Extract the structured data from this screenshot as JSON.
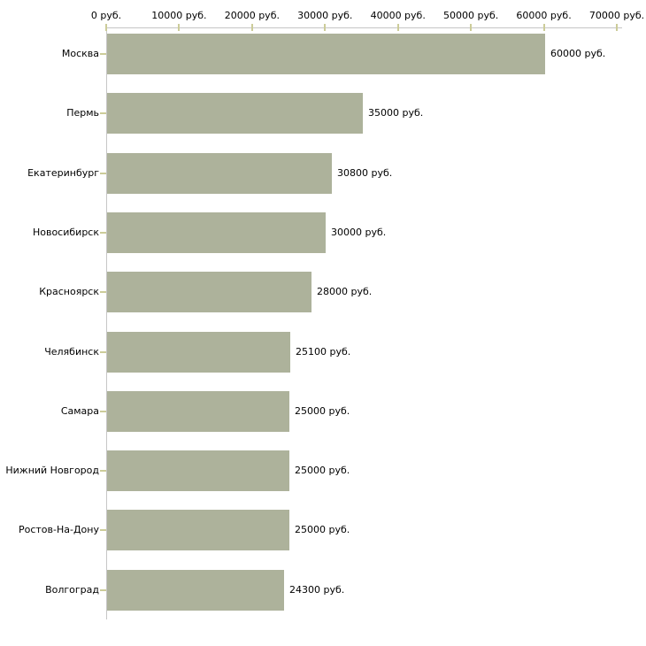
{
  "chart_data": {
    "type": "bar",
    "orientation": "horizontal",
    "categories": [
      "Москва",
      "Пермь",
      "Екатеринбург",
      "Новосибирск",
      "Красноярск",
      "Челябинск",
      "Самара",
      "Нижний Новгород",
      "Ростов-На-Дону",
      "Волгоград"
    ],
    "values": [
      60000,
      35000,
      30800,
      30000,
      28000,
      25100,
      25000,
      25000,
      25000,
      24300
    ],
    "value_labels": [
      "60000 руб.",
      "35000 руб.",
      "30800 руб.",
      "30000 руб.",
      "28000 руб.",
      "25100 руб.",
      "25000 руб.",
      "25000 руб.",
      "25000 руб.",
      "24300 руб."
    ],
    "x_ticks": [
      0,
      10000,
      20000,
      30000,
      40000,
      50000,
      60000,
      70000
    ],
    "x_tick_labels": [
      "0 руб.",
      "10000 руб.",
      "20000 руб.",
      "30000 руб.",
      "40000 руб.",
      "50000 руб.",
      "60000 руб.",
      "70000 руб."
    ],
    "xlim": [
      0,
      70000
    ],
    "title": "",
    "xlabel": "",
    "ylabel": "",
    "grid": false,
    "legend": false,
    "colors": {
      "bar_fill": "#adb29b",
      "axis_line": "#c6c6c6",
      "tick_mark": "#cccc99",
      "text": "#000000",
      "background": "#ffffff"
    }
  }
}
